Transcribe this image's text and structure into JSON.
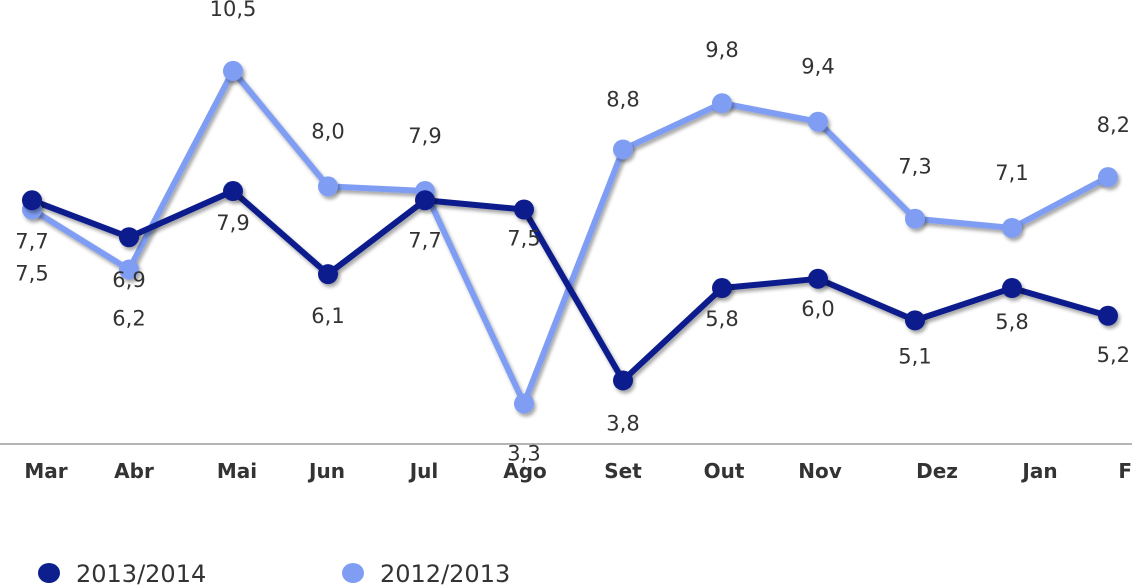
{
  "chart_data": {
    "type": "line",
    "categories": [
      "Mar",
      "Abr",
      "Mai",
      "Jun",
      "Jul",
      "Ago",
      "Set",
      "Out",
      "Nov",
      "Dez",
      "Jan",
      "F"
    ],
    "series": [
      {
        "name": "2013/2014",
        "color": "#0d1f8c",
        "values": [
          7.7,
          6.9,
          7.9,
          6.1,
          7.7,
          7.5,
          3.8,
          5.8,
          6.0,
          5.1,
          5.8,
          5.2
        ],
        "labels": [
          "7,7",
          "6,9",
          "7,9",
          "6,1",
          "7,7",
          "7,5",
          "3,8",
          "5,8",
          "6,0",
          "5,1",
          "5,8",
          "5,2"
        ]
      },
      {
        "name": "2012/2013",
        "color": "#7f9df3",
        "values": [
          7.5,
          6.2,
          10.5,
          8.0,
          7.9,
          3.3,
          8.8,
          9.8,
          9.4,
          7.3,
          7.1,
          8.2
        ],
        "labels": [
          "7,5",
          "6,2",
          "10,5",
          "8,0",
          "7,9",
          "3,3",
          "8,8",
          "9,8",
          "9,4",
          "7,3",
          "7,1",
          "8,2"
        ]
      }
    ],
    "xlabel": "",
    "ylabel": "",
    "ylim": [
      0,
      11
    ],
    "grid": false,
    "legend_position": "bottom-left"
  }
}
